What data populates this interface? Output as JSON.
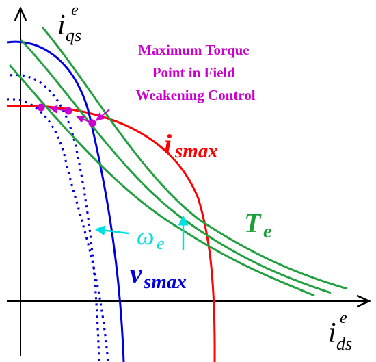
{
  "axes": {
    "y_main": "i",
    "y_sup": "e",
    "y_sub": "qs",
    "x_main": "i",
    "x_sup": "e",
    "x_sub": "ds"
  },
  "annotation": {
    "lines": [
      "Maximum Torque",
      "Point in Field",
      "Weakening Control"
    ],
    "color": "#cc00cc"
  },
  "labels": {
    "ismax": {
      "main": "i",
      "sub": "smax",
      "color": "#ff0000"
    },
    "te": {
      "main": "T",
      "sub": "e",
      "color": "#1a9e3a"
    },
    "we": {
      "main": "ω",
      "sub": "e",
      "color": "#00e0e0"
    },
    "vsmax": {
      "main": "v",
      "sub": "smax",
      "color": "#0000dd"
    }
  },
  "colors": {
    "current_limit": "#ff0000",
    "voltage_limit": "#0000dd",
    "torque": "#22a040",
    "speed_arrow": "#00e0e0",
    "points": "#cc00cc",
    "axis": "#000000"
  }
}
